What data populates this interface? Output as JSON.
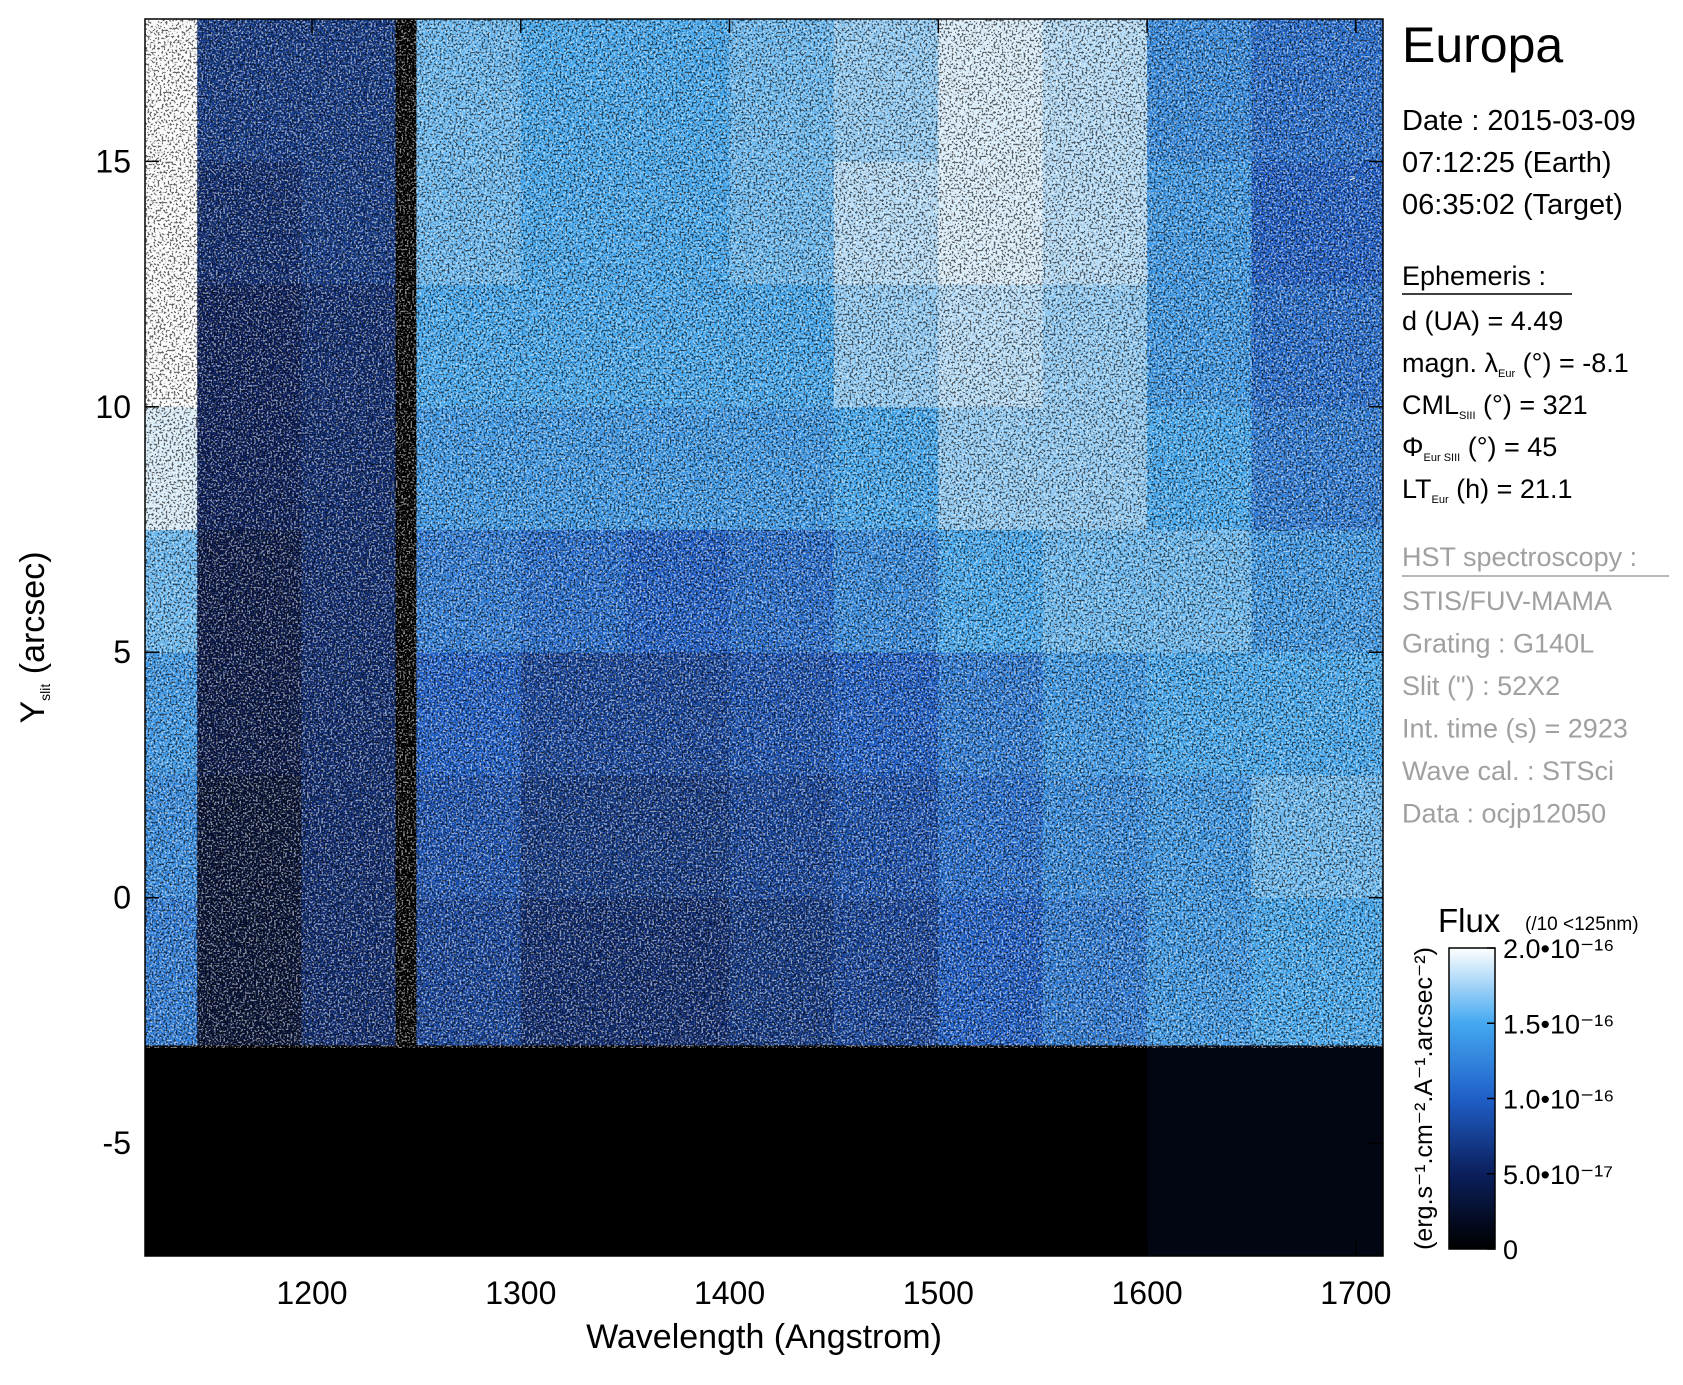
{
  "chart_data": {
    "type": "heatmap",
    "title": "Europa",
    "xlabel": "Wavelength (Angstrom)",
    "ylabel": {
      "a": "Y",
      "sub": "slit",
      "b": " (arcsec)"
    },
    "x_edges": [
      1120,
      1145,
      1195,
      1240,
      1250,
      1300,
      1350,
      1400,
      1450,
      1500,
      1550,
      1600,
      1650,
      1713
    ],
    "y_edges": [
      -7.3,
      -3,
      0,
      2.5,
      5,
      7.5,
      10,
      12.5,
      15,
      17.9
    ],
    "z": [
      [
        0,
        0,
        0,
        0,
        0,
        0,
        0,
        0,
        0,
        0,
        0,
        1e-17,
        1e-17
      ],
      [
        1.2e-16,
        3e-17,
        6e-17,
        0,
        8e-17,
        6e-17,
        6e-17,
        7e-17,
        8e-17,
        1e-16,
        1.2e-16,
        1.4e-16,
        1.5e-16
      ],
      [
        1.3e-16,
        3e-17,
        6e-17,
        0,
        9e-17,
        7e-17,
        7e-17,
        8e-17,
        9e-17,
        1.1e-16,
        1.3e-16,
        1.4e-16,
        1.6e-16
      ],
      [
        1.4e-16,
        4e-17,
        6e-17,
        0,
        1e-16,
        8e-17,
        8e-17,
        9e-17,
        1e-16,
        1.2e-16,
        1.4e-16,
        1.5e-16,
        1.5e-16
      ],
      [
        1.6e-16,
        4e-17,
        6e-17,
        0,
        1.2e-16,
        1.1e-16,
        1e-16,
        1.1e-16,
        1.3e-16,
        1.5e-16,
        1.6e-16,
        1.6e-16,
        1.4e-16
      ],
      [
        1.9e-16,
        5e-17,
        6e-17,
        0,
        1.4e-16,
        1.4e-16,
        1.4e-16,
        1.4e-16,
        1.5e-16,
        1.7e-16,
        1.7e-16,
        1.5e-16,
        1.2e-16
      ],
      [
        2e-16,
        5e-17,
        6e-17,
        0,
        1.5e-16,
        1.5e-16,
        1.5e-16,
        1.5e-16,
        1.7e-16,
        1.8e-16,
        1.7e-16,
        1.4e-16,
        1.1e-16
      ],
      [
        2e-16,
        6e-17,
        7e-17,
        0,
        1.6e-16,
        1.5e-16,
        1.5e-16,
        1.6e-16,
        1.8e-16,
        1.9e-16,
        1.8e-16,
        1.4e-16,
        1e-16
      ],
      [
        2e-16,
        7e-17,
        7e-17,
        0,
        1.6e-16,
        1.5e-16,
        1.5e-16,
        1.6e-16,
        1.7e-16,
        1.9e-16,
        1.8e-16,
        1.3e-16,
        1.1e-16
      ]
    ],
    "xlim": [
      1120,
      1713
    ],
    "ylim": [
      -7.3,
      17.9
    ],
    "xticks": [
      1200,
      1300,
      1400,
      1500,
      1600,
      1700
    ],
    "yticks": [
      -5,
      0,
      5,
      10,
      15
    ],
    "zlim": [
      0,
      2e-16
    ],
    "colorscale": [
      "#000000",
      "#0b1f5c",
      "#1f5fc8",
      "#44a8f0",
      "#ffffff"
    ],
    "colorbar_title": "Flux",
    "colorbar_note": "(/10 <125nm)",
    "colorbar_label": "(erg.s⁻¹.cm⁻².A⁻¹.arcsec⁻²)",
    "zticks": [
      0,
      {
        "value": 5e-17,
        "label": "5.0•10⁻¹⁷"
      },
      {
        "value": 1e-16,
        "label": "1.0•10⁻¹⁶"
      },
      {
        "value": 1.5e-16,
        "label": "1.5•10⁻¹⁶"
      },
      {
        "value": 2e-16,
        "label": "2.0•10⁻¹⁶"
      }
    ],
    "date_lines": [
      "Date : 2015-03-09",
      "07:12:25 (Earth)",
      "06:35:02 (Target)"
    ],
    "ephemeris_header": "Ephemeris :",
    "ephemeris": [
      {
        "a": "d (UA)     = 4.49"
      },
      {
        "a": "magn. λ",
        "sub": "Eur",
        "b": " (°)  = -8.1"
      },
      {
        "a": "CML",
        "sub": "SIII",
        "b": " (°) = 321"
      },
      {
        "a": "Φ",
        "sub": "Eur SIII",
        "b": " (°) = 45"
      },
      {
        "a": "LT",
        "sub": "Eur",
        "b": " (h) = 21.1"
      }
    ],
    "hst_header": "HST spectroscopy :",
    "hst_lines": [
      "STIS/FUV-MAMA",
      "Grating : G140L",
      "Slit (\") : 52X2",
      "Int. time (s) = 2923",
      "Wave cal. : STSci",
      "Data : ocjp12050"
    ]
  }
}
